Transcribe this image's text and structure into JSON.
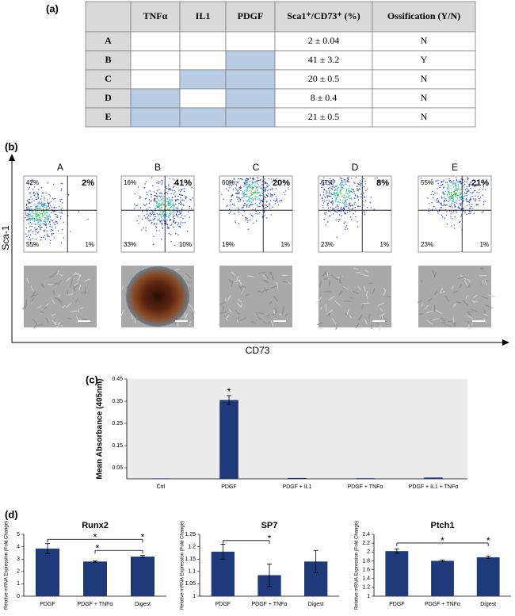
{
  "figure": {
    "panel_labels": [
      "(a)",
      "(b)",
      "(c)",
      "(d)"
    ],
    "table": {
      "header": [
        "TNFα",
        "IL1",
        "PDGF",
        "Sca1⁺/CD73⁺ (%)",
        "Ossification (Y/N)"
      ],
      "shade_color": "#b8cce4",
      "rows": [
        {
          "label": "A",
          "factors": [
            false,
            false,
            false
          ],
          "sca1_cd73": "2 ± 0.04",
          "ossification": "N"
        },
        {
          "label": "B",
          "factors": [
            false,
            false,
            true
          ],
          "sca1_cd73": "41 ± 3.2",
          "ossification": "Y"
        },
        {
          "label": "C",
          "factors": [
            false,
            true,
            true
          ],
          "sca1_cd73": "20 ± 0.5",
          "ossification": "N"
        },
        {
          "label": "D",
          "factors": [
            true,
            false,
            true
          ],
          "sca1_cd73": "8 ± 0.4",
          "ossification": "N"
        },
        {
          "label": "E",
          "factors": [
            true,
            true,
            true
          ],
          "sca1_cd73": "21 ± 0.5",
          "ossification": "N"
        }
      ]
    },
    "flow": {
      "x_label": "CD73",
      "y_label": "Sca-1",
      "plots": [
        {
          "name": "A",
          "upper_left": "42%",
          "upper_right": "2%",
          "lower_left": "55%",
          "lower_right": "1%"
        },
        {
          "name": "B",
          "upper_left": "16%",
          "upper_right": "41%",
          "lower_left": "33%",
          "lower_right": "10%"
        },
        {
          "name": "C",
          "upper_left": "60%",
          "upper_right": "20%",
          "lower_left": "19%",
          "lower_right": "1%"
        },
        {
          "name": "D",
          "upper_left": "67%",
          "upper_right": "8%",
          "lower_left": "23%",
          "lower_right": "1%"
        },
        {
          "name": "E",
          "upper_left": "55%",
          "upper_right": "21%",
          "lower_left": "23%",
          "lower_right": "1%"
        }
      ]
    }
  },
  "chart_data": [
    {
      "type": "bar",
      "ylabel": "Mean Absorbance (405nm)",
      "categories": [
        "Ctrl",
        "PDGF",
        "PDGF + IL1",
        "PDGF + TNFα",
        "PDGF + IL1 + TNFα"
      ],
      "values": [
        0.002,
        0.355,
        0.004,
        0.003,
        0.006
      ],
      "errors": [
        null,
        0.02,
        null,
        null,
        null
      ],
      "color": "#1f3a7a",
      "ylim": [
        0,
        0.45
      ],
      "yticks": [
        0.05,
        0.15,
        0.25,
        0.35,
        0.45
      ],
      "annotations": [
        "*"
      ]
    },
    {
      "type": "bar",
      "title": "Runx2",
      "ylabel": "Relative mRNA Expression (Fold Change)",
      "categories": [
        "PDGF",
        "PDGF + TNFα",
        "Digest"
      ],
      "values": [
        3.85,
        2.8,
        3.2
      ],
      "errors": [
        0.4,
        0.05,
        0.1
      ],
      "color": "#1f3a7a",
      "ylim": [
        0,
        5
      ],
      "yticks": [
        0,
        1,
        2,
        3,
        4,
        5
      ],
      "annotations": [
        "*",
        "*",
        "*"
      ]
    },
    {
      "type": "bar",
      "title": "SP7",
      "ylabel": "Relative mRNA Expression (Fold Change)",
      "categories": [
        "PDGF",
        "PDGF + TNFα",
        "Digest"
      ],
      "values": [
        1.18,
        1.085,
        1.14
      ],
      "errors": [
        0.03,
        0.045,
        0.045
      ],
      "color": "#1f3a7a",
      "ylim": [
        1,
        1.25
      ],
      "yticks": [
        1,
        1.05,
        1.1,
        1.15,
        1.2,
        1.25
      ],
      "annotations": [
        "*"
      ]
    },
    {
      "type": "bar",
      "title": "Ptch1",
      "ylabel": "Relative mRNA Expression (Fold Change)",
      "categories": [
        "PDGF",
        "PDGF + TNFα",
        "Digest"
      ],
      "values": [
        2.02,
        1.8,
        1.88
      ],
      "errors": [
        0.05,
        0.02,
        0.03
      ],
      "color": "#1f3a7a",
      "ylim": [
        1,
        2.4
      ],
      "yticks": [
        1,
        1.2,
        1.4,
        1.6,
        1.8,
        2,
        2.2,
        2.4
      ],
      "annotations": [
        "*",
        "*"
      ]
    }
  ]
}
